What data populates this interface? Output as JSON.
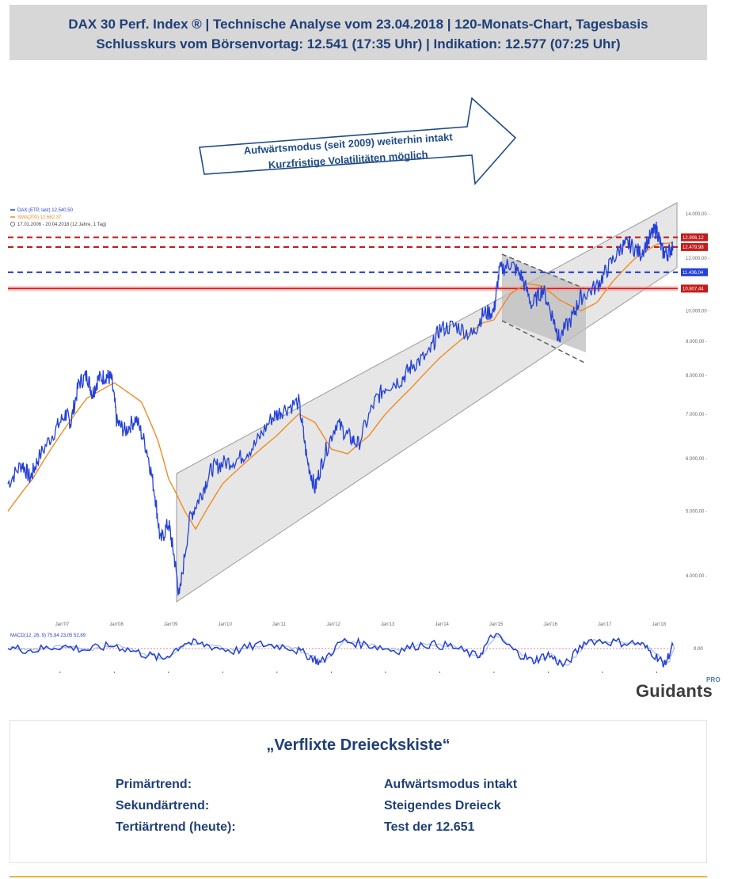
{
  "header": {
    "line1": "DAX 30 Perf. Index ® | Technische Analyse vom 23.04.2018 | 120-Monats-Chart, Tagesbasis",
    "line2": "Schlusskurs vom Börsenvortag: 12.541 (17:35 Uhr) | Indikation: 12.577 (07:25 Uhr)"
  },
  "annotation": {
    "line1": "Aufwärtsmodus (seit 2009) weiterhin intakt",
    "line2": "Kurzfristige Volatilitäten möglich"
  },
  "legend": {
    "dax": "DAX (ETP, last)  12.540,50",
    "sma": "SMA(200)  12.662,37",
    "range": "17.01.2006 - 20.04.2018  (12 Jahre, 1 Tag)"
  },
  "macd_legend": "MACD(12, 26, 9)  75,94  23,05  52,89",
  "brand": {
    "name": "Guidants",
    "tag": "PRO"
  },
  "colors": {
    "price": "#2340d8",
    "sma": "#f08a24",
    "resistance": "#c41c1c",
    "support": "#2340d8",
    "channel": "#d6d6d6"
  },
  "chart_data": {
    "type": "line",
    "title": "",
    "scale": "log",
    "ylim": [
      3500,
      14500
    ],
    "y_ticks": [
      "14.000,00",
      "12.000,00",
      "10.000,00",
      "9.000,00",
      "8.000,00",
      "7.000,00",
      "6.000,00",
      "5.000,00",
      "4.000,00"
    ],
    "y_tick_values": [
      14000,
      12000,
      10000,
      9000,
      8000,
      7000,
      6000,
      5000,
      4000
    ],
    "x_ticks": [
      "Jan'07",
      "Jan'08",
      "Jan'09",
      "Jan'10",
      "Jan'11",
      "Jan'12",
      "Jan'13",
      "Jan'14",
      "Jan'15",
      "Jan'16",
      "Jan'17",
      "Jan'18"
    ],
    "x_range": [
      2006.04,
      2018.3
    ],
    "series": [
      {
        "name": "DAX (ETP, last)",
        "x": [
          2006.04,
          2006.3,
          2006.45,
          2006.6,
          2006.9,
          2007.1,
          2007.2,
          2007.35,
          2007.5,
          2007.6,
          2007.7,
          2007.85,
          2007.95,
          2008.05,
          2008.2,
          2008.4,
          2008.6,
          2008.75,
          2008.85,
          2009.0,
          2009.1,
          2009.2,
          2009.4,
          2009.6,
          2009.8,
          2010.0,
          2010.3,
          2010.6,
          2010.9,
          2011.1,
          2011.4,
          2011.55,
          2011.7,
          2011.85,
          2012.1,
          2012.3,
          2012.5,
          2012.8,
          2013.0,
          2013.3,
          2013.5,
          2013.8,
          2014.0,
          2014.3,
          2014.6,
          2014.8,
          2015.0,
          2015.1,
          2015.3,
          2015.5,
          2015.7,
          2015.9,
          2016.1,
          2016.2,
          2016.45,
          2016.6,
          2016.9,
          2017.1,
          2017.35,
          2017.5,
          2017.7,
          2017.9,
          2018.0,
          2018.1,
          2018.2,
          2018.3
        ],
        "values": [
          5500,
          5900,
          5600,
          6000,
          6600,
          7000,
          6800,
          7800,
          8000,
          7500,
          7900,
          8000,
          7900,
          6800,
          6600,
          6900,
          6200,
          5300,
          4500,
          4800,
          4300,
          3700,
          4900,
          5300,
          5800,
          5900,
          6000,
          6300,
          6900,
          7100,
          7300,
          6000,
          5400,
          6000,
          6800,
          6500,
          6300,
          7300,
          7700,
          7900,
          8300,
          8600,
          9400,
          9500,
          9200,
          9900,
          10000,
          11500,
          11800,
          11300,
          10200,
          10800,
          9700,
          9100,
          9800,
          10500,
          10900,
          11600,
          12500,
          12600,
          12200,
          13000,
          13300,
          12300,
          12200,
          12540
        ]
      },
      {
        "name": "SMA(200)",
        "x": [
          2006.04,
          2006.5,
          2007.0,
          2007.5,
          2008.0,
          2008.5,
          2008.8,
          2009.0,
          2009.3,
          2009.5,
          2010.0,
          2010.5,
          2011.0,
          2011.4,
          2011.7,
          2012.0,
          2012.3,
          2012.7,
          2013.0,
          2013.5,
          2014.0,
          2014.5,
          2014.8,
          2015.0,
          2015.3,
          2015.6,
          2015.9,
          2016.2,
          2016.6,
          2016.9,
          2017.2,
          2017.6,
          2018.0,
          2018.3
        ],
        "values": [
          5000,
          5600,
          6500,
          7400,
          7800,
          7300,
          6400,
          5600,
          5000,
          4700,
          5500,
          6000,
          6500,
          7000,
          6800,
          6200,
          6100,
          6500,
          7000,
          7700,
          8500,
          9200,
          9600,
          9700,
          10600,
          11000,
          10900,
          10400,
          10000,
          10300,
          11100,
          12000,
          12600,
          12662
        ]
      }
    ],
    "horizontal_lines": [
      {
        "value": 12906.12,
        "label": "12.906,12",
        "style": "dashed",
        "color": "red"
      },
      {
        "value": 12479.98,
        "label": "12.479,98",
        "style": "dashed",
        "color": "red"
      },
      {
        "value": 11436.04,
        "label": "11.436,04",
        "style": "dashed",
        "color": "blue"
      },
      {
        "value": 10807.44,
        "label": "10.807,44",
        "style": "solid",
        "color": "red"
      }
    ],
    "macd": {
      "name": "MACD(12, 26, 9)",
      "zero_label": "0,00",
      "x": [
        2006.04,
        2006.5,
        2007.0,
        2007.5,
        2008.0,
        2008.5,
        2008.9,
        2009.3,
        2009.7,
        2010.2,
        2010.7,
        2011.2,
        2011.6,
        2011.8,
        2012.2,
        2012.7,
        2013.2,
        2013.7,
        2014.2,
        2014.7,
        2015.0,
        2015.4,
        2015.7,
        2016.0,
        2016.3,
        2016.7,
        2017.2,
        2017.7,
        2018.0,
        2018.15,
        2018.3
      ],
      "values": [
        20,
        -40,
        60,
        -30,
        80,
        -120,
        -250,
        150,
        80,
        -60,
        100,
        50,
        -180,
        -350,
        180,
        90,
        -50,
        110,
        60,
        -200,
        350,
        -80,
        -300,
        -150,
        -420,
        200,
        160,
        120,
        -200,
        -380,
        75.94
      ]
    }
  }
}
